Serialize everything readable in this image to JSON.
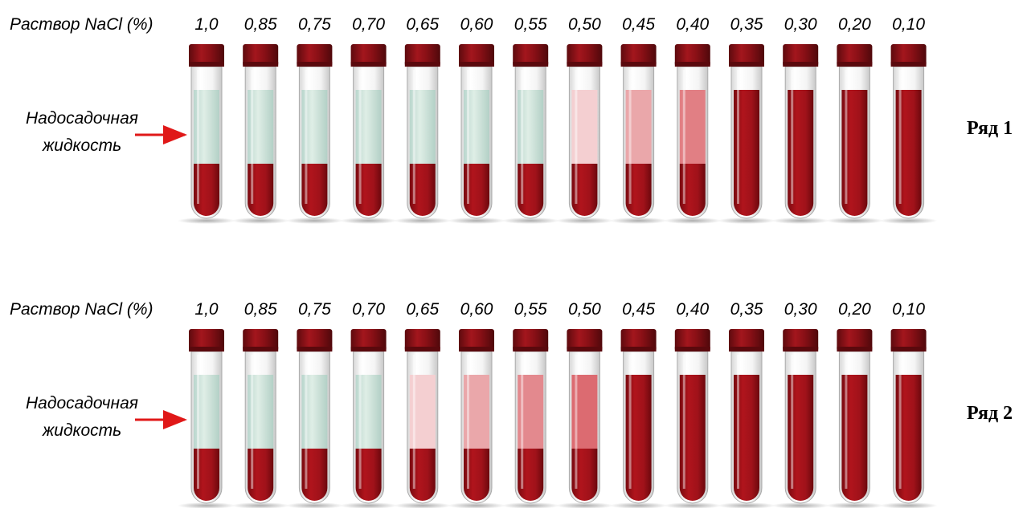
{
  "rows": [
    {
      "label": "Раствор NaCl (%)",
      "concentrations": [
        "1,0",
        "0,85",
        "0,75",
        "0,70",
        "0,65",
        "0,60",
        "0,55",
        "0,50",
        "0,45",
        "0,40",
        "0,35",
        "0,30",
        "0,20",
        "0,10"
      ],
      "supernatant_label": [
        "Надосадочная",
        "жидкость"
      ],
      "row_label": "Ряд 1"
    },
    {
      "label": "Раствор NaCl (%)",
      "concentrations": [
        "1,0",
        "0,85",
        "0,75",
        "0,70",
        "0,65",
        "0,60",
        "0,55",
        "0,50",
        "0,45",
        "0,40",
        "0,35",
        "0,30",
        "0,20",
        "0,10"
      ],
      "supernatant_label": [
        "Надосадочная",
        "жидкость"
      ],
      "row_label": "Ряд 2"
    }
  ]
}
